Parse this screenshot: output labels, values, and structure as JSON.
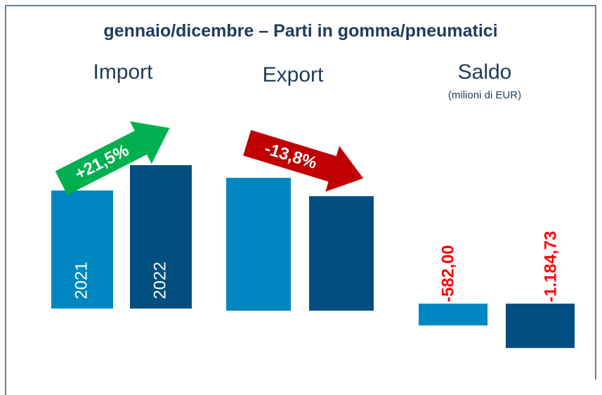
{
  "title": "gennaio/dicembre – Parti in gomma/pneumatici",
  "chart_data": [
    {
      "type": "bar",
      "title": "Import",
      "categories": [
        "2021",
        "2022"
      ],
      "values": [
        1935,
        2351
      ],
      "colors": [
        "#0087c1",
        "#004f80"
      ],
      "annotation": "+21,5%",
      "annotation_color": "#00b050"
    },
    {
      "type": "bar",
      "title": "Export",
      "categories": [
        null,
        null
      ],
      "values": [
        1353,
        1166
      ],
      "colors": [
        "#0087c1",
        "#004f80"
      ],
      "annotation": "-13,8%",
      "annotation_color": "#c00000"
    },
    {
      "type": "bar",
      "title": "Saldo",
      "subtitle": "(milioni di EUR)",
      "categories": [
        null,
        null
      ],
      "values": [
        -582,
        -1184.73
      ],
      "value_labels": [
        "-582,00",
        "-1.184,73"
      ],
      "colors": [
        "#0087c1",
        "#004f80"
      ],
      "label_color": "#ff0000"
    }
  ]
}
